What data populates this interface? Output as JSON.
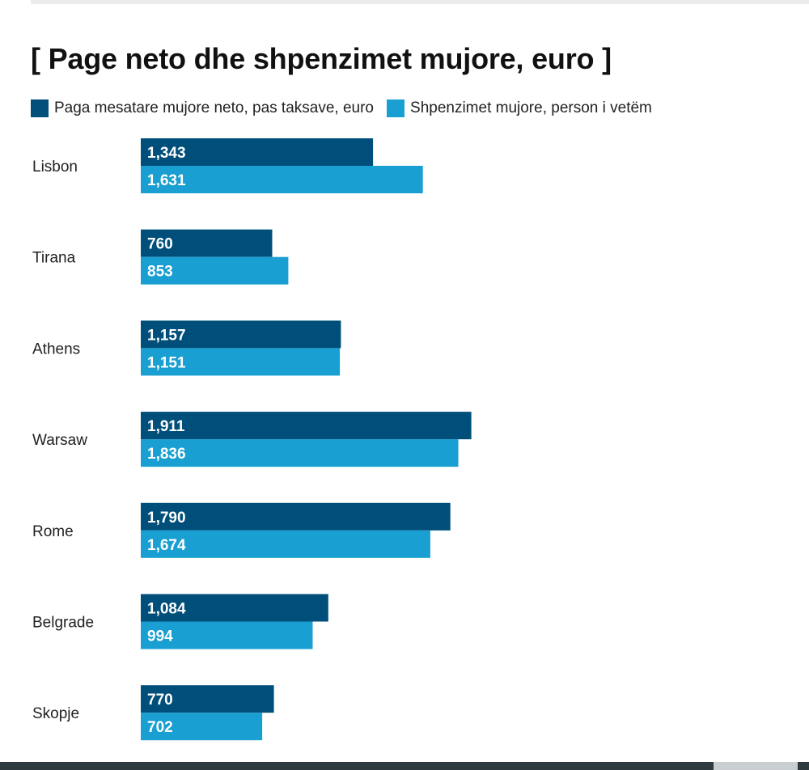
{
  "chart_data": {
    "type": "bar",
    "orientation": "horizontal",
    "title": "[ Page neto dhe shpenzimet mujore, euro ]",
    "categories": [
      "Lisbon",
      "Tirana",
      "Athens",
      "Warsaw",
      "Rome",
      "Belgrade",
      "Skopje"
    ],
    "series": [
      {
        "name": "Paga mesatare mujore neto, pas taksave, euro",
        "color": "#004f7a",
        "values": [
          1343,
          760,
          1157,
          1911,
          1790,
          1084,
          770
        ],
        "labels": [
          "1,343",
          "760",
          "1,157",
          "1,911",
          "1,790",
          "1,084",
          "770"
        ]
      },
      {
        "name": "Shpenzimet mujore, person i vetëm",
        "color": "#199fd1",
        "values": [
          1631,
          853,
          1151,
          1836,
          1674,
          994,
          702
        ],
        "labels": [
          "1,631",
          "853",
          "1,151",
          "1,836",
          "1,674",
          "994",
          "702"
        ]
      }
    ],
    "xlim": [
      0,
      2000
    ],
    "grid": false,
    "legend_position": "top-left",
    "data_labels": "inside-start"
  }
}
